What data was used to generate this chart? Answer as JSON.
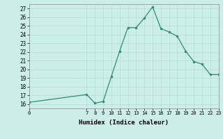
{
  "x": [
    0,
    7,
    8,
    9,
    10,
    11,
    12,
    13,
    14,
    15,
    16,
    17,
    18,
    19,
    20,
    21,
    22,
    23
  ],
  "y": [
    16.2,
    17.1,
    16.1,
    16.3,
    19.2,
    22.1,
    24.8,
    24.8,
    25.9,
    27.2,
    24.7,
    24.3,
    23.8,
    22.1,
    20.9,
    20.6,
    19.4,
    19.4
  ],
  "xlabel": "Humidex (Indice chaleur)",
  "xlim": [
    0,
    23
  ],
  "ylim": [
    15.5,
    27.5
  ],
  "yticks": [
    16,
    17,
    18,
    19,
    20,
    21,
    22,
    23,
    24,
    25,
    26,
    27
  ],
  "xticks": [
    0,
    7,
    8,
    9,
    10,
    11,
    12,
    13,
    14,
    15,
    16,
    17,
    18,
    19,
    20,
    21,
    22,
    23
  ],
  "line_color": "#2d8b7a",
  "bg_color": "#cceee8",
  "grid_color": "#b8ddd8",
  "plot_bg": "#cceee8"
}
